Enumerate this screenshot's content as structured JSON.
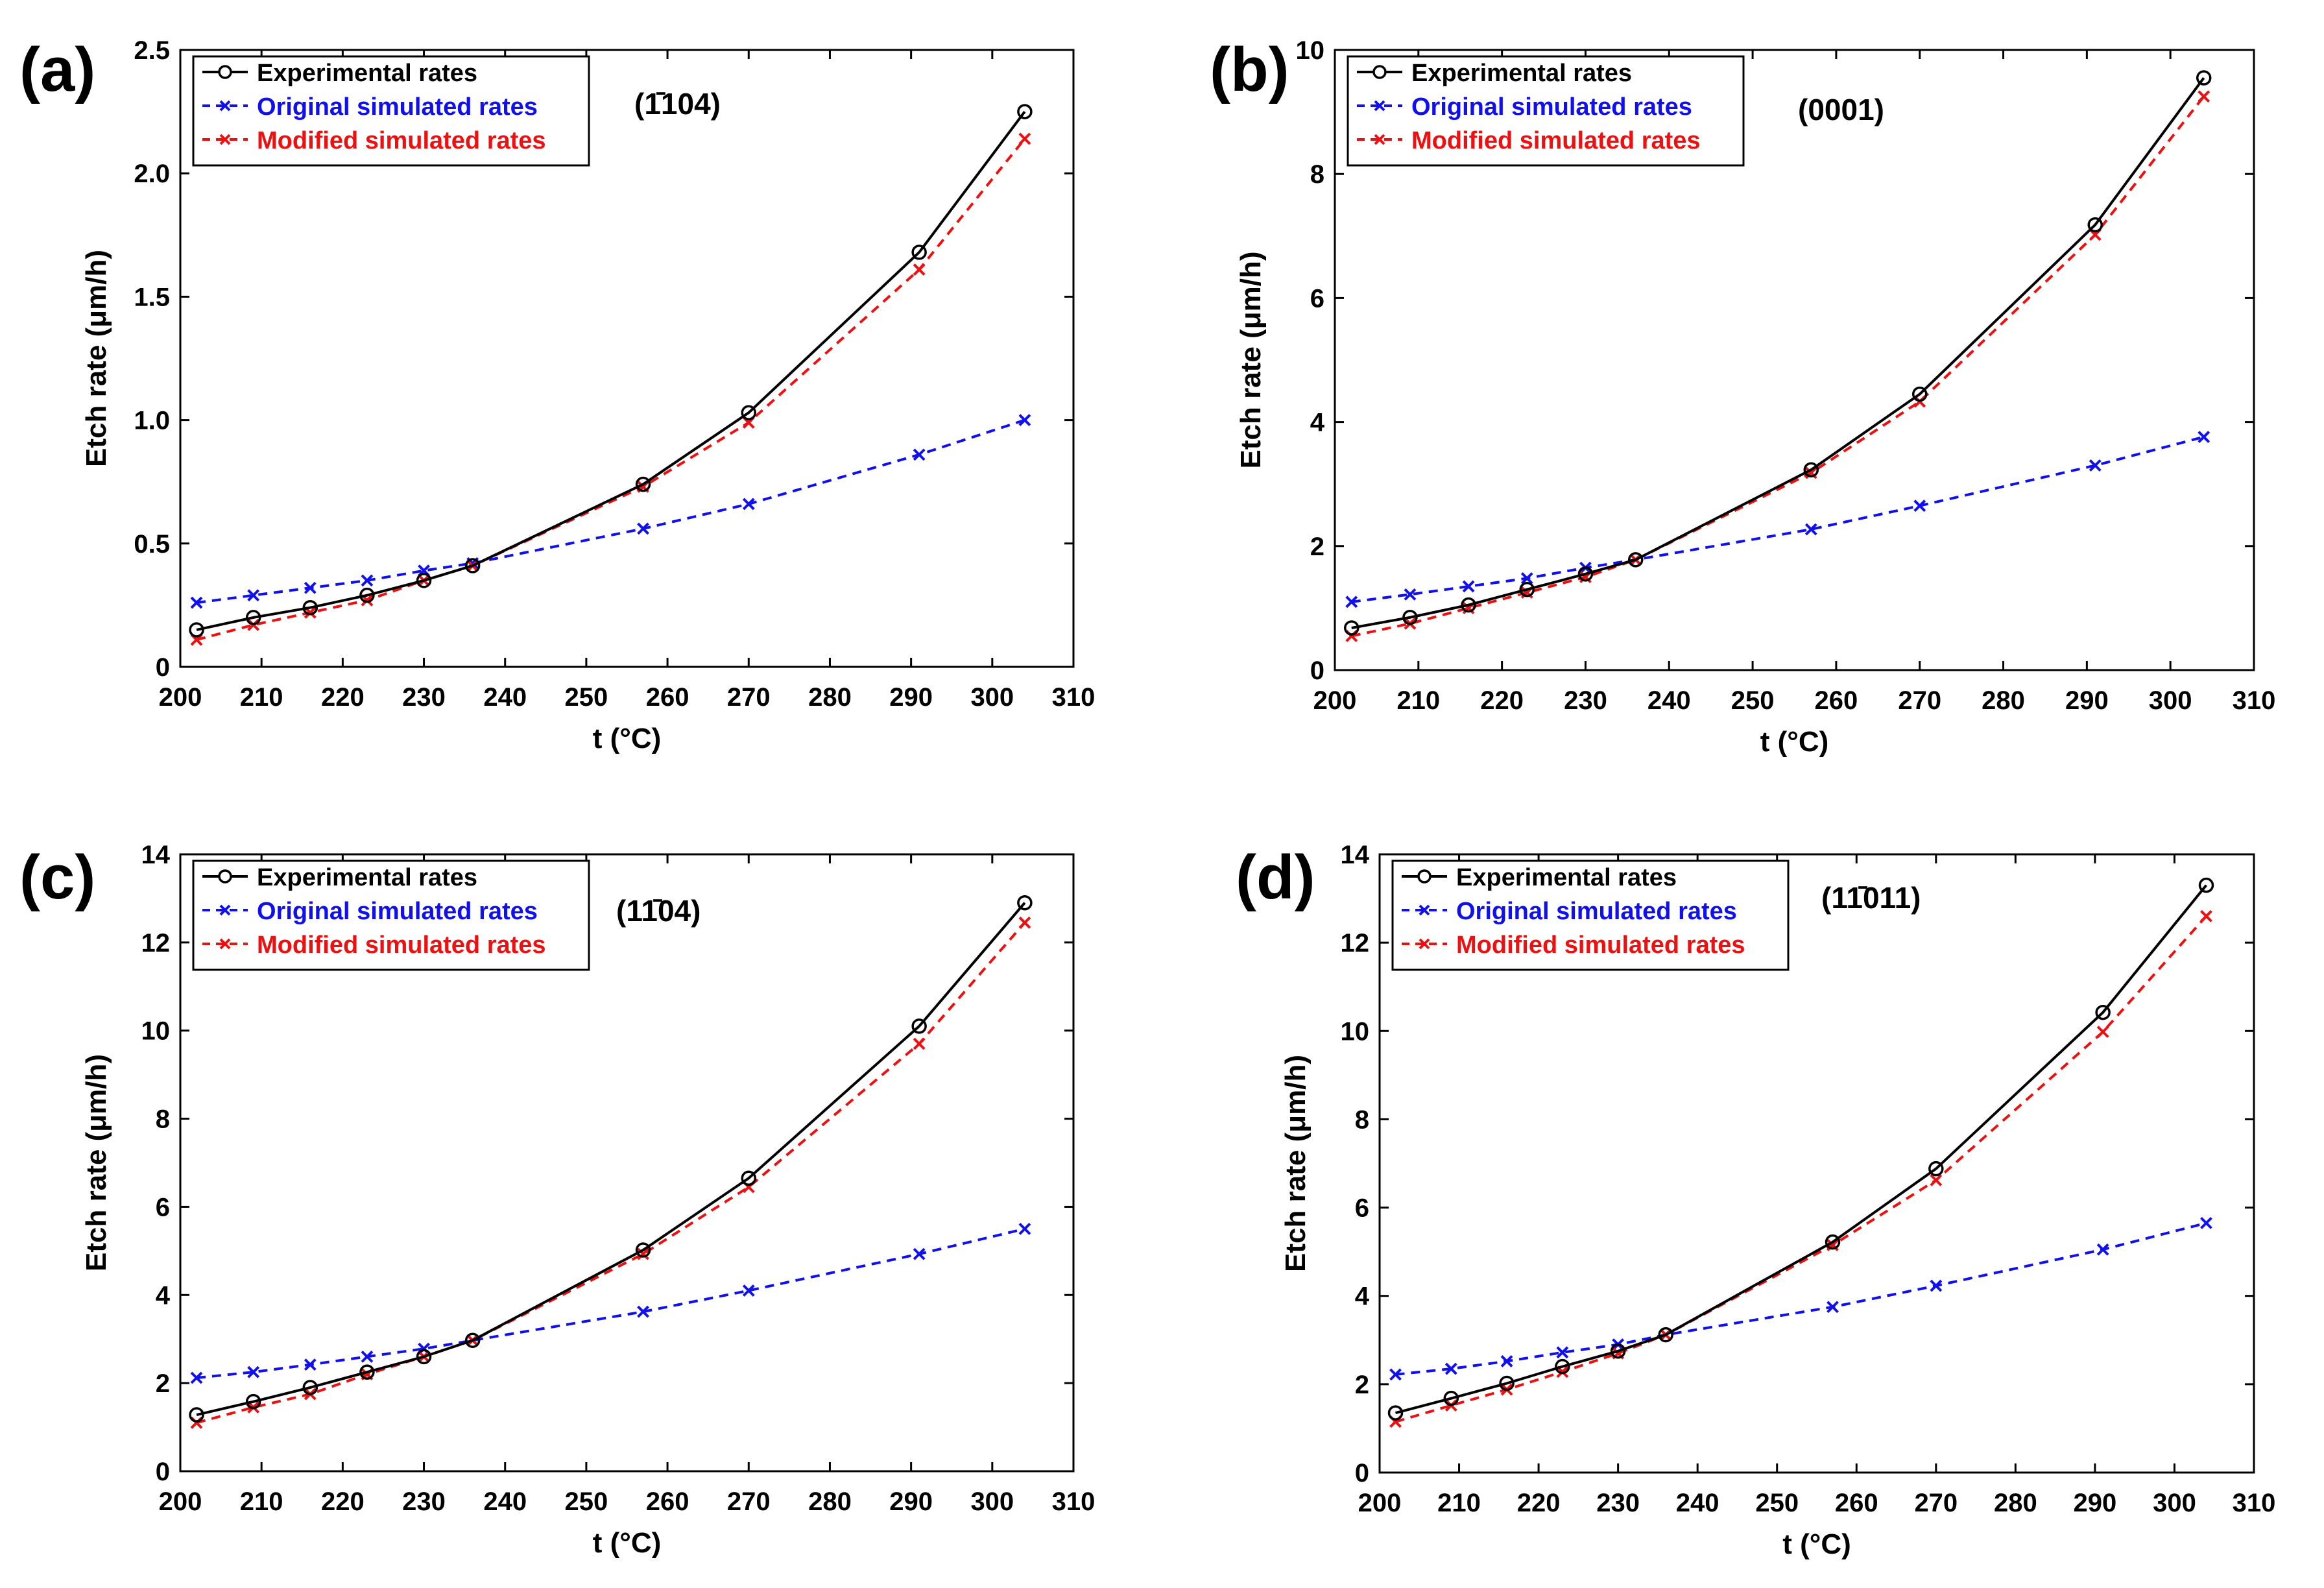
{
  "chart_data": [
    {
      "type": "line",
      "panel_label": "(a)",
      "plane_label": "(1̄104)",
      "xlabel": "t (°C)",
      "ylabel": "Etch rate (μm/h)",
      "xlim": [
        200,
        310
      ],
      "ylim": [
        0,
        2.5
      ],
      "xticks": [
        200,
        210,
        220,
        230,
        240,
        250,
        260,
        270,
        280,
        290,
        300,
        310
      ],
      "yticks": [
        0,
        0.5,
        1.0,
        1.5,
        2.0,
        2.5
      ],
      "ytick_labels": [
        "0",
        "0.5",
        "1.0",
        "1.5",
        "2.0",
        "2.5"
      ],
      "legend_position": "top-left",
      "x": [
        202,
        209,
        216,
        223,
        230,
        236,
        257,
        270,
        291,
        304
      ],
      "series": [
        {
          "name": "Experimental rates",
          "color": "#000000",
          "style": "solid",
          "marker": "circle",
          "values": [
            0.15,
            0.2,
            0.24,
            0.29,
            0.35,
            0.41,
            0.74,
            1.03,
            1.68,
            2.25
          ]
        },
        {
          "name": "Original simulated rates",
          "color": "#1010ee",
          "style": "dashed",
          "marker": "x",
          "values": [
            0.26,
            0.29,
            0.32,
            0.35,
            0.39,
            0.42,
            0.56,
            0.66,
            0.86,
            1.0
          ]
        },
        {
          "name": "Modified simulated rates",
          "color": "#ee1010",
          "style": "dashed",
          "marker": "x",
          "values": [
            0.11,
            0.17,
            0.22,
            0.27,
            0.35,
            0.41,
            0.73,
            0.99,
            1.61,
            2.14
          ]
        }
      ]
    },
    {
      "type": "line",
      "panel_label": "(b)",
      "plane_label": "(0001)",
      "xlabel": "t (°C)",
      "ylabel": "Etch rate (μm/h)",
      "xlim": [
        200,
        310
      ],
      "ylim": [
        0,
        10
      ],
      "xticks": [
        200,
        210,
        220,
        230,
        240,
        250,
        260,
        270,
        280,
        290,
        300,
        310
      ],
      "yticks": [
        0,
        2,
        4,
        6,
        8,
        10
      ],
      "ytick_labels": [
        "0",
        "2",
        "4",
        "6",
        "8",
        "10"
      ],
      "legend_position": "top-left",
      "x": [
        202,
        209,
        216,
        223,
        230,
        236,
        257,
        270,
        291,
        304
      ],
      "series": [
        {
          "name": "Experimental rates",
          "color": "#000000",
          "style": "solid",
          "marker": "circle",
          "values": [
            0.68,
            0.85,
            1.05,
            1.3,
            1.55,
            1.78,
            3.23,
            4.45,
            7.18,
            9.55
          ]
        },
        {
          "name": "Original simulated rates",
          "color": "#1010ee",
          "style": "dashed",
          "marker": "x",
          "values": [
            1.1,
            1.22,
            1.35,
            1.48,
            1.65,
            1.78,
            2.27,
            2.65,
            3.3,
            3.76
          ]
        },
        {
          "name": "Modified simulated rates",
          "color": "#ee1010",
          "style": "dashed",
          "marker": "x",
          "values": [
            0.55,
            0.75,
            1.0,
            1.25,
            1.5,
            1.78,
            3.18,
            4.33,
            7.02,
            9.25
          ]
        }
      ]
    },
    {
      "type": "line",
      "panel_label": "(c)",
      "plane_label": "(11̄04)",
      "xlabel": "t (°C)",
      "ylabel": "Etch rate (μm/h)",
      "xlim": [
        200,
        310
      ],
      "ylim": [
        0,
        14
      ],
      "xticks": [
        200,
        210,
        220,
        230,
        240,
        250,
        260,
        270,
        280,
        290,
        300,
        310
      ],
      "yticks": [
        0,
        2,
        4,
        6,
        8,
        10,
        12,
        14
      ],
      "ytick_labels": [
        "0",
        "2",
        "4",
        "6",
        "8",
        "10",
        "12",
        "14"
      ],
      "legend_position": "top-left",
      "x": [
        202,
        209,
        216,
        223,
        230,
        236,
        257,
        270,
        291,
        304
      ],
      "series": [
        {
          "name": "Experimental rates",
          "color": "#000000",
          "style": "solid",
          "marker": "circle",
          "values": [
            1.28,
            1.58,
            1.9,
            2.25,
            2.6,
            2.97,
            5.02,
            6.65,
            10.1,
            12.9
          ]
        },
        {
          "name": "Original simulated rates",
          "color": "#1010ee",
          "style": "dashed",
          "marker": "x",
          "values": [
            2.12,
            2.25,
            2.42,
            2.6,
            2.78,
            2.97,
            3.62,
            4.1,
            4.93,
            5.5
          ]
        },
        {
          "name": "Modified simulated rates",
          "color": "#ee1010",
          "style": "dashed",
          "marker": "x",
          "values": [
            1.1,
            1.45,
            1.75,
            2.2,
            2.6,
            2.97,
            4.93,
            6.45,
            9.7,
            12.45
          ]
        }
      ]
    },
    {
      "type": "line",
      "panel_label": "(d)",
      "plane_label": "(11̄011)",
      "xlabel": "t (°C)",
      "ylabel": "Etch rate (μm/h)",
      "xlim": [
        200,
        310
      ],
      "ylim": [
        0,
        14
      ],
      "xticks": [
        200,
        210,
        220,
        230,
        240,
        250,
        260,
        270,
        280,
        290,
        300,
        310
      ],
      "yticks": [
        0,
        2,
        4,
        6,
        8,
        10,
        12,
        14
      ],
      "ytick_labels": [
        "0",
        "2",
        "4",
        "6",
        "8",
        "10",
        "12",
        "14"
      ],
      "legend_position": "top-left",
      "x": [
        202,
        209,
        216,
        223,
        230,
        236,
        257,
        270,
        291,
        304
      ],
      "series": [
        {
          "name": "Experimental rates",
          "color": "#000000",
          "style": "solid",
          "marker": "circle",
          "values": [
            1.35,
            1.68,
            2.02,
            2.4,
            2.75,
            3.12,
            5.22,
            6.88,
            10.42,
            13.3
          ]
        },
        {
          "name": "Original simulated rates",
          "color": "#1010ee",
          "style": "dashed",
          "marker": "x",
          "values": [
            2.22,
            2.35,
            2.52,
            2.72,
            2.9,
            3.12,
            3.75,
            4.23,
            5.05,
            5.65
          ]
        },
        {
          "name": "Modified simulated rates",
          "color": "#ee1010",
          "style": "dashed",
          "marker": "x",
          "values": [
            1.15,
            1.52,
            1.88,
            2.28,
            2.7,
            3.12,
            5.15,
            6.62,
            9.98,
            12.6
          ]
        }
      ]
    }
  ]
}
